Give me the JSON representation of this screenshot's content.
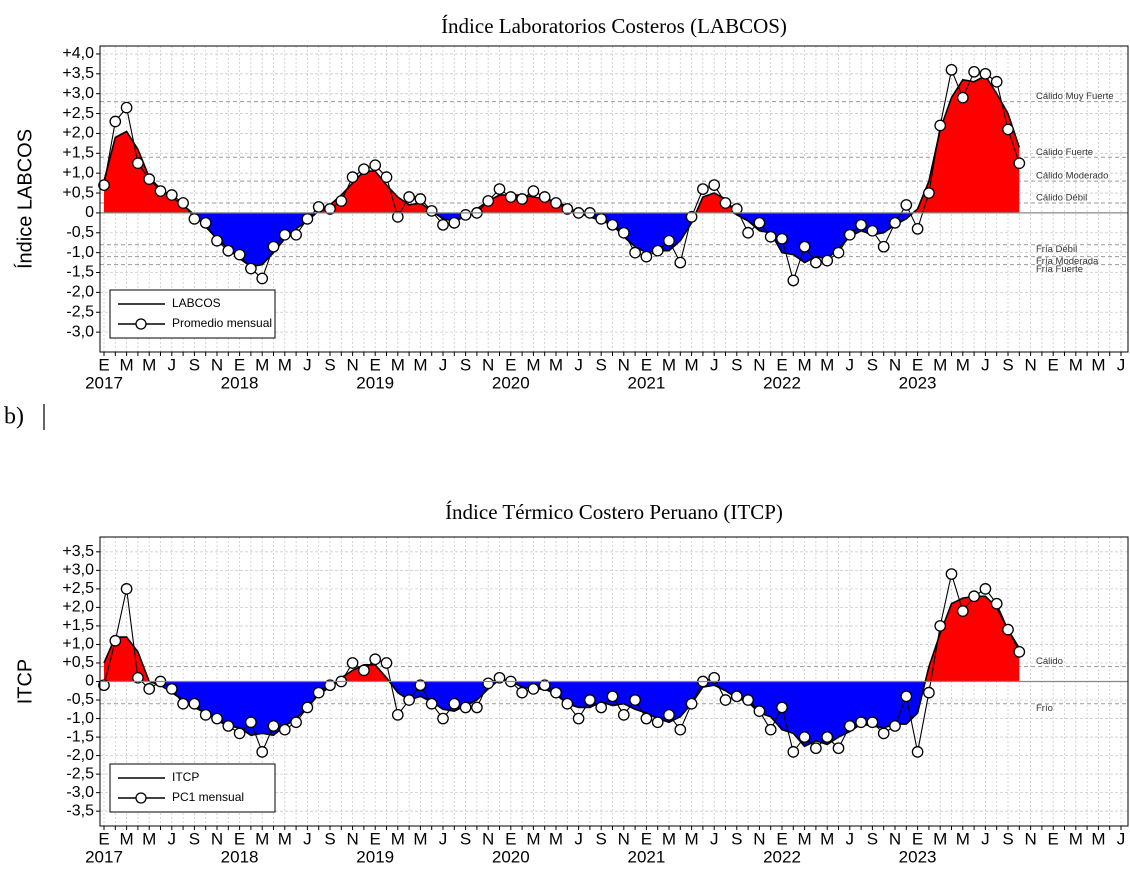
{
  "panel_label": "b)",
  "chart_data": [
    {
      "type": "area",
      "title": "Índice Laboratorios Costeros (LABCOS)",
      "y_label": "Índice LABCOS",
      "categories": [
        "E",
        null,
        "M",
        null,
        "M",
        null,
        "J",
        null,
        "S",
        null,
        "N",
        null,
        "E",
        null,
        "M",
        null,
        "M",
        null,
        "J",
        null,
        "S",
        null,
        "N",
        null,
        "E",
        null,
        "M",
        null,
        "M",
        null,
        "J",
        null,
        "S",
        null,
        "N",
        null,
        "E",
        null,
        "M",
        null,
        "M",
        null,
        "J",
        null,
        "S",
        null,
        "N",
        null,
        "E",
        null,
        "M",
        null,
        "M",
        null,
        "J",
        null,
        "S",
        null,
        "N",
        null,
        "E",
        null,
        "M",
        null,
        "M",
        null,
        "J",
        null,
        "S",
        null,
        "N",
        null,
        "E",
        null,
        "M",
        null,
        "M",
        null,
        "J",
        null,
        "S",
        null,
        "N",
        null,
        "E",
        null,
        "M",
        null,
        "M",
        null,
        "J"
      ],
      "year_labels": [
        "2017",
        "2018",
        "2019",
        "2020",
        "2021",
        "2022",
        "2023"
      ],
      "ylim": [
        -3.5,
        4.2
      ],
      "yticks": [
        {
          "value": 4.0,
          "label": "+4,0"
        },
        {
          "value": 3.5,
          "label": "+3,5"
        },
        {
          "value": 3.0,
          "label": "+3,0"
        },
        {
          "value": 2.5,
          "label": "+2,5"
        },
        {
          "value": 2.0,
          "label": "+2,0"
        },
        {
          "value": 1.5,
          "label": "+1,5"
        },
        {
          "value": 1.0,
          "label": "+1,0"
        },
        {
          "value": 0.5,
          "label": "+0,5"
        },
        0,
        {
          "value": -0.5,
          "label": "-0,5"
        },
        {
          "value": -1.0,
          "label": "-1,0"
        },
        {
          "value": -1.5,
          "label": "-1,5"
        },
        {
          "value": -2.0,
          "label": "-2,0"
        },
        {
          "value": -2.5,
          "label": "-2,5"
        },
        {
          "value": -3.0,
          "label": "-3,0"
        }
      ],
      "grid": true,
      "thresholds": [
        {
          "value": 2.8,
          "label": "Cálido Muy Fuerte"
        },
        {
          "value": 1.4,
          "label": "Cálido Fuerte"
        },
        {
          "value": 0.8,
          "label": "Cálido Moderado"
        },
        {
          "value": 0.25,
          "label": "Cálido Débil"
        },
        {
          "value": -0.8,
          "label": "Fría Débil"
        },
        {
          "value": -1.1,
          "label": "Fría Moderada"
        },
        {
          "value": -1.3,
          "label": "Fría Fuerte"
        }
      ],
      "positive_color": "#ff0000",
      "negative_color": "#0000ff",
      "legend": "lower left",
      "series": [
        {
          "name": "LABCOS",
          "color": "#000000",
          "values": [
            0.8,
            1.9,
            2.05,
            1.6,
            0.9,
            0.6,
            0.4,
            0.2,
            -0.05,
            -0.35,
            -0.65,
            -0.9,
            -1.15,
            -1.35,
            -1.3,
            -1.0,
            -0.65,
            -0.4,
            -0.2,
            0.05,
            0.2,
            0.45,
            0.75,
            1.05,
            1.05,
            0.7,
            0.4,
            0.2,
            0.25,
            0.05,
            -0.15,
            -0.2,
            -0.1,
            0.1,
            0.3,
            0.45,
            0.45,
            0.45,
            0.4,
            0.35,
            0.3,
            0.15,
            0.0,
            -0.1,
            -0.2,
            -0.3,
            -0.6,
            -0.85,
            -1.0,
            -0.95,
            -0.95,
            -0.7,
            -0.25,
            0.4,
            0.5,
            0.35,
            -0.05,
            -0.2,
            -0.45,
            -0.5,
            -1.0,
            -1.05,
            -1.25,
            -1.1,
            -1.15,
            -0.9,
            -0.6,
            -0.45,
            -0.55,
            -0.5,
            -0.3,
            -0.15,
            0.1,
            0.8,
            2.1,
            2.9,
            3.35,
            3.3,
            3.45,
            3.0,
            2.5,
            1.65,
            null,
            null,
            null,
            null,
            null,
            null,
            null,
            null,
            null
          ]
        },
        {
          "name": "Promedio mensual",
          "color": "#000000",
          "values": [
            0.7,
            2.3,
            2.65,
            1.25,
            0.85,
            0.55,
            0.45,
            0.25,
            -0.15,
            -0.25,
            -0.7,
            -0.95,
            -1.05,
            -1.4,
            -1.65,
            -0.85,
            -0.55,
            -0.55,
            -0.15,
            0.15,
            0.1,
            0.3,
            0.9,
            1.1,
            1.2,
            0.9,
            -0.1,
            0.4,
            0.35,
            0.05,
            -0.3,
            -0.25,
            -0.05,
            0.0,
            0.3,
            0.6,
            0.4,
            0.35,
            0.55,
            0.4,
            0.25,
            0.1,
            0.0,
            0.0,
            -0.15,
            -0.3,
            -0.5,
            -1.0,
            -1.1,
            -0.95,
            -0.7,
            -1.25,
            -0.1,
            0.6,
            0.7,
            0.25,
            0.1,
            -0.5,
            -0.25,
            -0.6,
            -0.65,
            -1.7,
            -0.85,
            -1.25,
            -1.2,
            -1.0,
            -0.55,
            -0.3,
            -0.45,
            -0.85,
            -0.25,
            0.2,
            -0.4,
            0.5,
            2.2,
            3.6,
            2.9,
            3.55,
            3.5,
            3.3,
            2.1,
            1.25,
            null,
            null,
            null,
            null,
            null,
            null,
            null,
            null,
            null
          ]
        }
      ]
    },
    {
      "type": "area",
      "title": "Índice Térmico Costero Peruano (ITCP)",
      "y_label": "ITCP",
      "categories": [
        "E",
        null,
        "M",
        null,
        "M",
        null,
        "J",
        null,
        "S",
        null,
        "N",
        null,
        "E",
        null,
        "M",
        null,
        "M",
        null,
        "J",
        null,
        "S",
        null,
        "N",
        null,
        "E",
        null,
        "M",
        null,
        "M",
        null,
        "J",
        null,
        "S",
        null,
        "N",
        null,
        "E",
        null,
        "M",
        null,
        "M",
        null,
        "J",
        null,
        "S",
        null,
        "N",
        null,
        "E",
        null,
        "M",
        null,
        "M",
        null,
        "J",
        null,
        "S",
        null,
        "N",
        null,
        "E",
        null,
        "M",
        null,
        "M",
        null,
        "J",
        null,
        "S",
        null,
        "N",
        null,
        "E",
        null,
        "M",
        null,
        "M",
        null,
        "J",
        null,
        "S",
        null,
        "N",
        null,
        "E",
        null,
        "M",
        null,
        "M",
        null,
        "J"
      ],
      "year_labels": [
        "2017",
        "2018",
        "2019",
        "2020",
        "2021",
        "2022",
        "2023"
      ],
      "ylim": [
        -3.9,
        3.9
      ],
      "yticks": [
        {
          "value": 3.5,
          "label": "+3,5"
        },
        {
          "value": 3.0,
          "label": "+3,0"
        },
        {
          "value": 2.5,
          "label": "+2,5"
        },
        {
          "value": 2.0,
          "label": "+2,0"
        },
        {
          "value": 1.5,
          "label": "+1,5"
        },
        {
          "value": 1.0,
          "label": "+1,0"
        },
        {
          "value": 0.5,
          "label": "+0,5"
        },
        0,
        {
          "value": -0.5,
          "label": "-0,5"
        },
        {
          "value": -1.0,
          "label": "-1,0"
        },
        {
          "value": -1.5,
          "label": "-1,5"
        },
        {
          "value": -2.0,
          "label": "-2,0"
        },
        {
          "value": -2.5,
          "label": "-2,5"
        },
        {
          "value": -3.0,
          "label": "-3,0"
        },
        {
          "value": -3.5,
          "label": "-3,5"
        }
      ],
      "grid": true,
      "thresholds": [
        {
          "value": 0.4,
          "label": "Cálido"
        },
        {
          "value": -0.6,
          "label": "Frío"
        }
      ],
      "positive_color": "#ff0000",
      "negative_color": "#0000ff",
      "legend": "lower left",
      "series": [
        {
          "name": "ITCP",
          "color": "#000000",
          "values": [
            0.5,
            1.2,
            1.2,
            0.8,
            0.0,
            -0.1,
            -0.3,
            -0.5,
            -0.7,
            -0.85,
            -1.05,
            -1.2,
            -1.25,
            -1.45,
            -1.4,
            -1.45,
            -1.2,
            -1.0,
            -0.7,
            -0.35,
            -0.15,
            0.1,
            0.3,
            0.45,
            0.45,
            0.1,
            -0.3,
            -0.5,
            -0.4,
            -0.55,
            -0.75,
            -0.8,
            -0.65,
            -0.5,
            -0.2,
            0.05,
            0.0,
            -0.15,
            -0.2,
            -0.2,
            -0.35,
            -0.6,
            -0.7,
            -0.7,
            -0.55,
            -0.65,
            -0.6,
            -0.75,
            -0.85,
            -1.0,
            -1.1,
            -0.95,
            -0.6,
            -0.15,
            -0.1,
            -0.25,
            -0.45,
            -0.55,
            -0.85,
            -0.95,
            -1.3,
            -1.4,
            -1.75,
            -1.6,
            -1.7,
            -1.5,
            -1.35,
            -1.15,
            -1.2,
            -1.25,
            -1.15,
            -1.15,
            -0.85,
            0.4,
            1.3,
            2.1,
            2.25,
            2.3,
            2.3,
            2.0,
            1.4,
            0.9,
            null,
            null,
            null,
            null,
            null,
            null,
            null,
            null,
            null
          ]
        },
        {
          "name": "PC1 mensual",
          "color": "#000000",
          "values": [
            -0.1,
            1.1,
            2.5,
            0.1,
            -0.2,
            0.0,
            -0.2,
            -0.6,
            -0.6,
            -0.9,
            -1.0,
            -1.2,
            -1.4,
            -1.1,
            -1.9,
            -1.2,
            -1.3,
            -1.1,
            -0.7,
            -0.3,
            -0.1,
            0.0,
            0.5,
            0.3,
            0.6,
            0.5,
            -0.9,
            -0.5,
            -0.1,
            -0.6,
            -1.0,
            -0.6,
            -0.7,
            -0.7,
            -0.05,
            0.1,
            0.0,
            -0.3,
            -0.2,
            -0.1,
            -0.3,
            -0.6,
            -1.0,
            -0.5,
            -0.7,
            -0.4,
            -0.9,
            -0.5,
            -1.0,
            -1.1,
            -0.9,
            -1.3,
            -0.6,
            0.0,
            0.1,
            -0.5,
            -0.4,
            -0.5,
            -0.8,
            -1.3,
            -0.7,
            -1.9,
            -1.5,
            -1.8,
            -1.5,
            -1.8,
            -1.2,
            -1.1,
            -1.1,
            -1.4,
            -1.2,
            -0.4,
            -1.9,
            -0.3,
            1.5,
            2.9,
            1.9,
            2.3,
            2.5,
            2.1,
            1.4,
            0.8,
            null,
            null,
            null,
            null,
            null,
            null,
            null,
            null,
            null
          ]
        }
      ]
    }
  ]
}
